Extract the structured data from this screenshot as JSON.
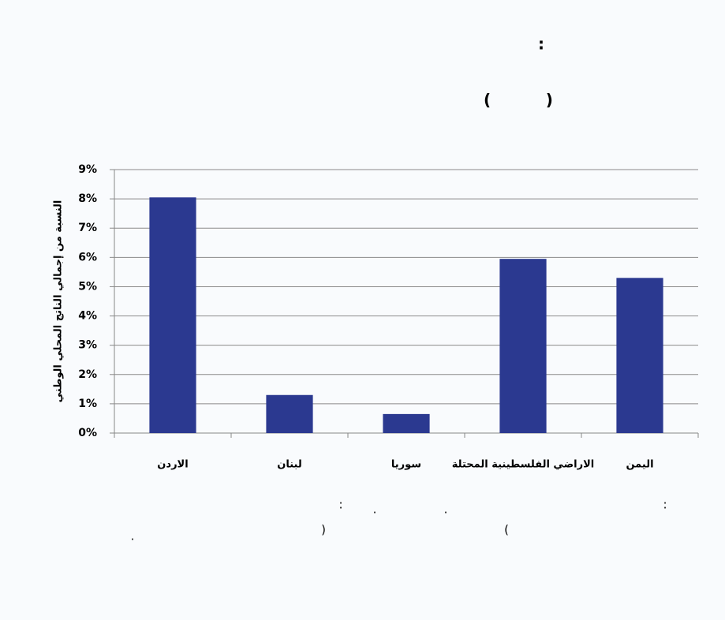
{
  "chart_data": {
    "type": "bar",
    "title": ":",
    "subtitle": "(          )",
    "y_label": "النسبة من إجمالي الناتج المحلي الوطني",
    "categories": [
      "الاردن",
      "لبنان",
      "سوريا",
      "الاراضي الفلسطينية المحتلة",
      "اليمن"
    ],
    "values": [
      8.05,
      1.3,
      0.65,
      5.95,
      5.3
    ],
    "color": "#2b3990",
    "ylim": [
      0,
      9
    ],
    "yticks": [
      {
        "value": 0,
        "label": "0%"
      },
      {
        "value": 1,
        "label": "1%"
      },
      {
        "value": 2,
        "label": "2%"
      },
      {
        "value": 3,
        "label": "3%"
      },
      {
        "value": 4,
        "label": "4%"
      },
      {
        "value": 5,
        "label": "5%"
      },
      {
        "value": 6,
        "label": "6%"
      },
      {
        "value": 7,
        "label": "7%"
      },
      {
        "value": 8,
        "label": "8%"
      },
      {
        "value": 9,
        "label": "9%"
      }
    ],
    "grid": true,
    "notes": [
      ":",
      ".",
      ".",
      ":",
      ")",
      "(",
      "."
    ]
  }
}
